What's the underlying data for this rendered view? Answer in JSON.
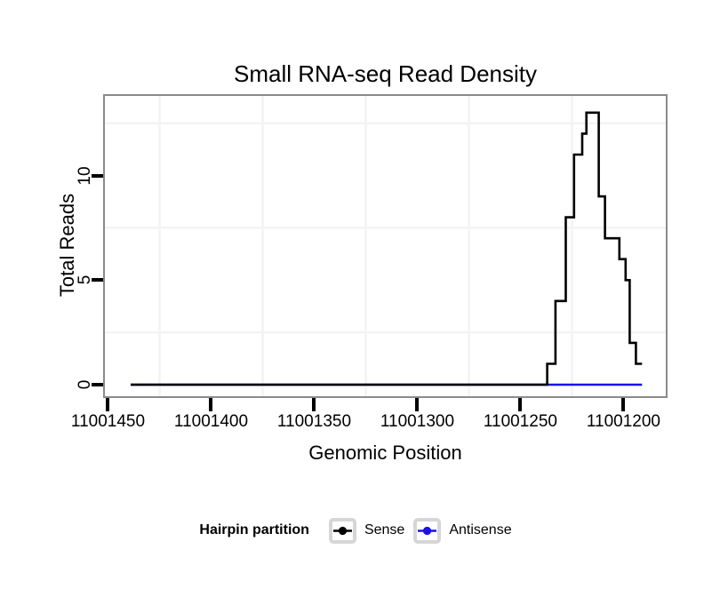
{
  "page": {
    "background": "#ffffff"
  },
  "chart_data": {
    "type": "line",
    "title": "Small RNA-seq Read Density",
    "xlabel": "Genomic Position",
    "ylabel": "Total Reads",
    "x_axis_reversed": true,
    "xlim": [
      11001451.5,
      11001179.5
    ],
    "ylim": [
      -0.55,
      13.8
    ],
    "x_ticks": {
      "values": [
        11001450,
        11001400,
        11001350,
        11001300,
        11001250,
        11001200
      ],
      "labels": [
        "11001450",
        "11001400",
        "11001350",
        "11001300",
        "11001250",
        "11001200"
      ]
    },
    "y_ticks": {
      "values": [
        0,
        5,
        10
      ],
      "labels": [
        "0",
        "5",
        "10"
      ]
    },
    "minor_gridlines": {
      "x": [
        11001425,
        11001375,
        11001325,
        11001275,
        11001225
      ],
      "y": [
        2.5,
        7.5,
        12.5
      ]
    },
    "grid_color": "#f3f3f3",
    "panel_border_color": "#8a8a8a",
    "series": [
      {
        "name": "Antisense",
        "color": "#1a10e8",
        "points": [
          [
            11001439,
            0
          ],
          [
            11001191,
            0
          ]
        ]
      },
      {
        "name": "Sense",
        "color": "#000000",
        "points": [
          [
            11001439,
            0
          ],
          [
            11001237,
            0
          ],
          [
            11001237,
            1
          ],
          [
            11001233,
            1
          ],
          [
            11001233,
            4
          ],
          [
            11001228,
            4
          ],
          [
            11001228,
            8
          ],
          [
            11001224,
            8
          ],
          [
            11001224,
            11
          ],
          [
            11001220,
            11
          ],
          [
            11001220,
            12
          ],
          [
            11001218,
            12
          ],
          [
            11001218,
            13
          ],
          [
            11001212,
            13
          ],
          [
            11001212,
            9
          ],
          [
            11001209,
            9
          ],
          [
            11001209,
            7
          ],
          [
            11001202,
            7
          ],
          [
            11001202,
            6
          ],
          [
            11001199,
            6
          ],
          [
            11001199,
            5
          ],
          [
            11001197,
            5
          ],
          [
            11001197,
            2
          ],
          [
            11001194,
            2
          ],
          [
            11001194,
            1
          ],
          [
            11001191,
            1
          ]
        ]
      }
    ],
    "legend": {
      "title": "Hairpin partition",
      "position": "bottom",
      "entries": [
        {
          "label": "Sense",
          "color": "#000000"
        },
        {
          "label": "Antisense",
          "color": "#1a10e8"
        }
      ]
    }
  }
}
